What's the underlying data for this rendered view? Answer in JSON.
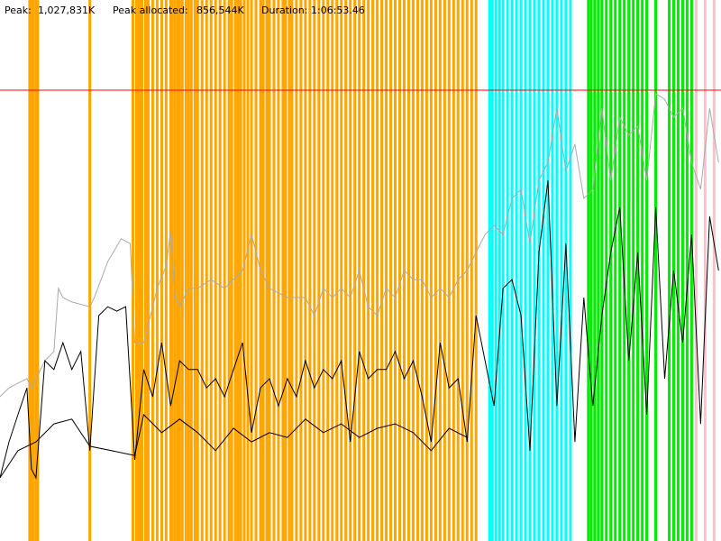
{
  "header": {
    "peak_label": "Peak:",
    "peak_value": "1,027,831K",
    "allocated_label": "Peak allocated:",
    "allocated_value": "856,544K",
    "duration_label": "Duration:",
    "duration_value": "1:06:53.46"
  },
  "chart_data": {
    "type": "line",
    "xlim": [
      0,
      4013.46
    ],
    "ylim": [
      0,
      1233397
    ],
    "peak_line": {
      "value": 1027831,
      "color": "#ff0000"
    },
    "events": [
      {
        "color": "#ffa500",
        "x": [
          165,
          175,
          185,
          200,
          210,
          500,
          740,
          760,
          775,
          790,
          810,
          825,
          850,
          875,
          900,
          925,
          950,
          960,
          975,
          990,
          1000,
          1015,
          1035,
          1050,
          1065,
          1085,
          1100,
          1125,
          1150,
          1175,
          1200,
          1225,
          1250,
          1275,
          1290,
          1310,
          1325,
          1340,
          1360,
          1380,
          1400,
          1425,
          1450,
          1465,
          1485,
          1500,
          1525,
          1550,
          1575,
          1590,
          1610,
          1625,
          1650,
          1675,
          1700,
          1725,
          1750,
          1775,
          1800,
          1825,
          1850,
          1875,
          1900,
          1925,
          1950,
          1975,
          2000,
          2025,
          2050,
          2075,
          2100,
          2125,
          2150,
          2175,
          2200,
          2225,
          2250,
          2275,
          2300,
          2325,
          2350,
          2375,
          2400,
          2425,
          2450,
          2475,
          2500,
          2525,
          2550,
          2575,
          2600,
          2625,
          2650
        ]
      },
      {
        "color": "#00ffff",
        "x": [
          2725,
          2740,
          2760,
          2780,
          2800,
          2825,
          2850,
          2875,
          2900,
          2925,
          2950,
          2975,
          3000,
          3025,
          3050,
          3075,
          3100,
          3125,
          3150,
          3175
        ]
      },
      {
        "color": "#00ee00",
        "x": [
          3275,
          3290,
          3310,
          3330,
          3350,
          3375,
          3400,
          3425,
          3450,
          3475,
          3500,
          3525,
          3550,
          3575,
          3600,
          3650,
          3725,
          3750,
          3775,
          3800,
          3825,
          3850
        ]
      },
      {
        "color": "#ffc0cb",
        "x": [
          3875,
          3925,
          3975
        ]
      }
    ],
    "series": [
      {
        "color": "#aaaaaa",
        "x": [
          0,
          50,
          100,
          150,
          175,
          200,
          250,
          300,
          325,
          350,
          400,
          500,
          525,
          600,
          675,
          725,
          750,
          800,
          875,
          925,
          950,
          975,
          1000,
          1050,
          1100,
          1175,
          1250,
          1350,
          1400,
          1450,
          1500,
          1600,
          1700,
          1750,
          1800,
          1850,
          1900,
          1950,
          2000,
          2050,
          2100,
          2150,
          2200,
          2250,
          2300,
          2350,
          2400,
          2450,
          2500,
          2550,
          2600,
          2650,
          2700,
          2750,
          2800,
          2850,
          2900,
          2950,
          3000,
          3050,
          3100,
          3150,
          3200,
          3250,
          3300,
          3350,
          3400,
          3450,
          3500,
          3550,
          3600,
          3650,
          3700,
          3750,
          3800,
          3850,
          3900,
          3950,
          4000
        ],
        "values": [
          329000,
          349000,
          360000,
          370000,
          349000,
          370000,
          411000,
          432000,
          576000,
          555000,
          545000,
          534000,
          555000,
          637000,
          689000,
          678000,
          452000,
          452000,
          576000,
          627000,
          709000,
          555000,
          534000,
          576000,
          576000,
          596000,
          576000,
          617000,
          699000,
          617000,
          576000,
          555000,
          555000,
          514000,
          576000,
          555000,
          576000,
          555000,
          617000,
          534000,
          514000,
          576000,
          555000,
          617000,
          596000,
          596000,
          555000,
          576000,
          555000,
          596000,
          617000,
          658000,
          699000,
          719000,
          699000,
          781000,
          802000,
          678000,
          822000,
          863000,
          987000,
          843000,
          905000,
          781000,
          802000,
          987000,
          822000,
          966000,
          925000,
          946000,
          822000,
          1020000,
          1007000,
          966000,
          987000,
          863000,
          802000,
          987000,
          863000
        ]
      },
      {
        "color": "#000000",
        "x": [
          0,
          50,
          100,
          150,
          175,
          200,
          250,
          300,
          350,
          400,
          450,
          500,
          550,
          600,
          650,
          700,
          750,
          800,
          850,
          900,
          950,
          1000,
          1050,
          1100,
          1150,
          1200,
          1250,
          1300,
          1350,
          1400,
          1450,
          1500,
          1550,
          1600,
          1650,
          1700,
          1750,
          1800,
          1850,
          1900,
          1950,
          2000,
          2050,
          2100,
          2150,
          2200,
          2250,
          2300,
          2350,
          2400,
          2450,
          2500,
          2550,
          2600,
          2650,
          2700,
          2750,
          2800,
          2850,
          2900,
          2950,
          3000,
          3050,
          3100,
          3150,
          3200,
          3250,
          3300,
          3350,
          3400,
          3450,
          3500,
          3550,
          3600,
          3650,
          3700,
          3750,
          3800,
          3850,
          3900,
          3950,
          4000
        ],
        "values": [
          144000,
          226000,
          288000,
          349000,
          164000,
          144000,
          411000,
          391000,
          452000,
          391000,
          432000,
          206000,
          514000,
          534000,
          524000,
          534000,
          185000,
          391000,
          329000,
          452000,
          308000,
          411000,
          391000,
          391000,
          349000,
          370000,
          329000,
          391000,
          452000,
          247000,
          349000,
          370000,
          308000,
          370000,
          329000,
          411000,
          349000,
          391000,
          370000,
          411000,
          226000,
          432000,
          370000,
          391000,
          391000,
          432000,
          370000,
          411000,
          329000,
          226000,
          452000,
          349000,
          370000,
          226000,
          514000,
          411000,
          308000,
          576000,
          596000,
          514000,
          206000,
          658000,
          822000,
          308000,
          678000,
          226000,
          555000,
          308000,
          514000,
          658000,
          761000,
          411000,
          658000,
          288000,
          761000,
          370000,
          617000,
          452000,
          699000,
          267000,
          740000,
          617000
        ]
      },
      {
        "color": "#000000",
        "x": [
          0,
          100,
          200,
          300,
          400,
          500,
          750,
          800,
          900,
          1000,
          1100,
          1200,
          1300,
          1400,
          1500,
          1600,
          1700,
          1800,
          1900,
          2000,
          2100,
          2200,
          2300,
          2400,
          2500,
          2600
        ],
        "values": [
          144000,
          206000,
          226000,
          267000,
          278000,
          216000,
          195000,
          288000,
          247000,
          278000,
          247000,
          206000,
          257000,
          226000,
          247000,
          236000,
          278000,
          247000,
          267000,
          236000,
          257000,
          267000,
          247000,
          206000,
          257000,
          236000
        ]
      }
    ]
  }
}
